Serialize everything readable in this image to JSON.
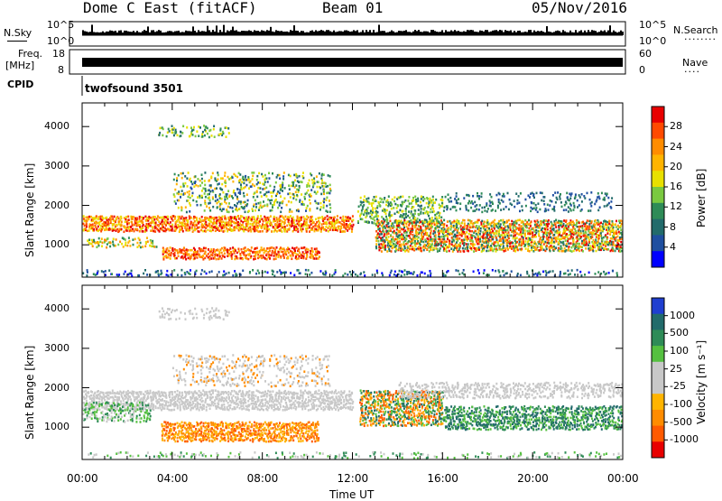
{
  "header": {
    "station": "Dome C East (fitACF)",
    "beam": "Beam 01",
    "date": "05/Nov/2016",
    "nsky_label": "N.Sky",
    "nsky_ticks": [
      "10^5",
      "10^0"
    ],
    "nsearch_label": "N.Search",
    "nsearch_ticks": [
      "10^5",
      "10^0"
    ],
    "freq_label": "Freq.",
    "freq_unit": "[MHz]",
    "freq_ticks": [
      "18",
      "8"
    ],
    "nave_label": "Nave",
    "nave_ticks": [
      "60",
      "0"
    ],
    "cpid_label": "CPID",
    "cpid_value": "twofsound 3501"
  },
  "chart_data": [
    {
      "type": "heatmap",
      "title": "",
      "ylabel": "Slant Range [km]",
      "ylim": [
        180,
        4600
      ],
      "y_ticks": [
        "1000",
        "2000",
        "3000",
        "4000"
      ],
      "x_ticks": [
        "00:00",
        "04:00",
        "08:00",
        "12:00",
        "16:00",
        "20:00",
        "00:00"
      ],
      "colorbar": {
        "label": "Power [dB]",
        "ticks": [
          "28",
          "24",
          "20",
          "16",
          "12",
          "8",
          "4"
        ],
        "colors": [
          "#e80000",
          "#ff4a00",
          "#ff8c00",
          "#ffb400",
          "#e8e000",
          "#7ac940",
          "#2e8b57",
          "#226b6b",
          "#1f4fa0",
          "#0000ff"
        ]
      },
      "features": [
        {
          "time": "00:00-12:00",
          "range_km": [
            1300,
            1700
          ],
          "power_db": 26
        },
        {
          "time": "03:30-10:30",
          "range_km": [
            600,
            900
          ],
          "power_db": 24
        },
        {
          "time": "13:00-24:00",
          "range_km": [
            800,
            1600
          ],
          "power_db": 26
        },
        {
          "time": "04:00-11:00",
          "range_km": [
            2000,
            2800
          ],
          "power_db": 14
        }
      ]
    },
    {
      "type": "heatmap",
      "title": "",
      "ylabel": "Slant Range [km]",
      "ylim": [
        180,
        4600
      ],
      "y_ticks": [
        "1000",
        "2000",
        "3000",
        "4000"
      ],
      "x_ticks": [
        "00:00",
        "04:00",
        "08:00",
        "12:00",
        "16:00",
        "20:00",
        "00:00"
      ],
      "xlabel": "Time UT",
      "colorbar": {
        "label": "Velocity [m s⁻¹]",
        "ticks": [
          "1000",
          "500",
          "100",
          "25",
          "-25",
          "-100",
          "-500",
          "-1000"
        ],
        "colors": [
          "#1f3fd0",
          "#226b6b",
          "#2e8b57",
          "#55c040",
          "#c8c8c8",
          "#c8c8c8",
          "#ffb400",
          "#ff8c00",
          "#ff5a00",
          "#e80000"
        ]
      },
      "features": [
        {
          "time": "00:00-12:00",
          "range_km": [
            1300,
            1800
          ],
          "velocity_ms": 0
        },
        {
          "time": "03:30-10:30",
          "range_km": [
            600,
            1100
          ],
          "velocity_ms": -300
        },
        {
          "time": "12:30-16:00",
          "range_km": [
            1000,
            1800
          ],
          "velocity_ms": 200
        }
      ]
    }
  ]
}
